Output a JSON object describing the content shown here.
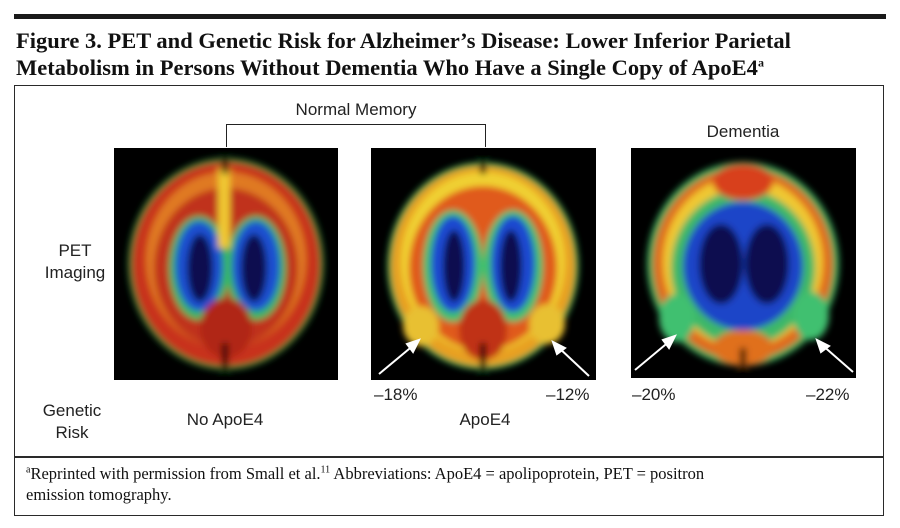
{
  "figure": {
    "title_line1": "Figure 3. PET and Genetic Risk for Alzheimer’s Disease: Lower Inferior Parietal",
    "title_line2": "Metabolism in Persons Without Dementia Who Have a Single Copy of ApoE4",
    "title_sup": "a"
  },
  "labels": {
    "normal_memory": "Normal Memory",
    "dementia": "Dementia",
    "pet_line1": "PET",
    "pet_line2": "Imaging",
    "genetic_line1": "Genetic",
    "genetic_line2": "Risk",
    "no_apoe4": "No ApoE4",
    "apoe4": "ApoE4"
  },
  "panels": [
    {
      "name": "no-apoe4",
      "pct_left": "",
      "pct_right": ""
    },
    {
      "name": "apoe4",
      "pct_left": "–18%",
      "pct_right": "–12%"
    },
    {
      "name": "dementia",
      "pct_left": "–20%",
      "pct_right": "–22%"
    }
  ],
  "footnote": {
    "sup": "a",
    "text_part1": "Reprinted with permission from Small et al.",
    "ref": "11",
    "text_part2": " Abbreviations: ApoE4 = apolipoprotein,  PET = positron",
    "line2": "emission tomography."
  },
  "colors": {
    "cortex_high": "#c0301a",
    "cortex_mid": "#e8a020",
    "yellow": "#f0d830",
    "green": "#3cc070",
    "blue": "#1844c8",
    "deep": "#0a0a50"
  }
}
